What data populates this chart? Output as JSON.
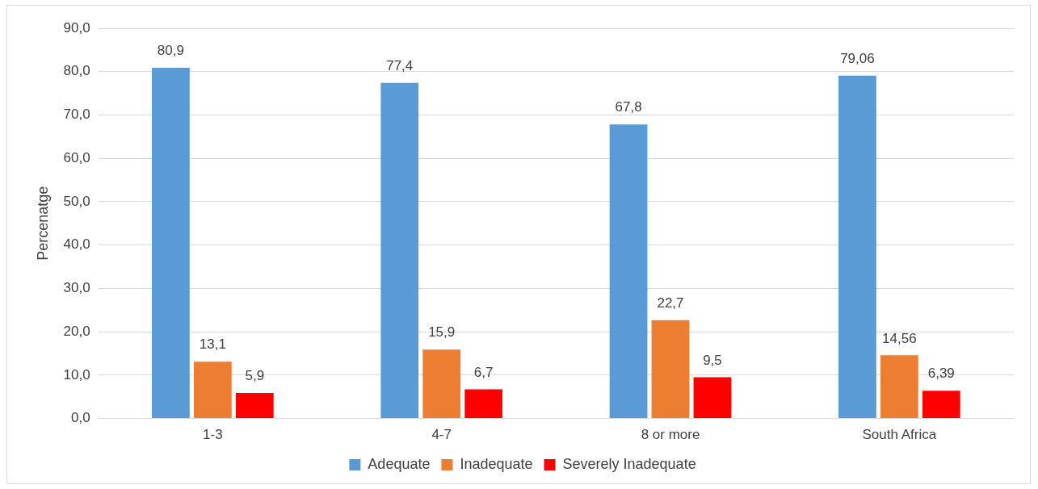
{
  "chart_data": {
    "type": "bar",
    "ylabel": "Percenatge",
    "categories": [
      "1-3",
      "4-7",
      "8 or more",
      "South Africa"
    ],
    "series": [
      {
        "name": "Adequate",
        "color": "#5b9bd5",
        "values": [
          80.9,
          77.4,
          67.8,
          79.06
        ],
        "value_labels": [
          "80,9",
          "77,4",
          "67,8",
          "79,06"
        ]
      },
      {
        "name": "Inadequate",
        "color": "#ed7d31",
        "values": [
          13.1,
          15.9,
          22.7,
          14.56
        ],
        "value_labels": [
          "13,1",
          "15,9",
          "22,7",
          "14,56"
        ]
      },
      {
        "name": "Severely Inadequate",
        "color": "#ff0000",
        "values": [
          5.9,
          6.7,
          9.5,
          6.39
        ],
        "value_labels": [
          "5,9",
          "6,7",
          "9,5",
          "6,39"
        ]
      }
    ],
    "ylim": [
      0,
      90
    ],
    "yticks": [
      {
        "value": 0,
        "label": "0,0"
      },
      {
        "value": 10,
        "label": "10,0"
      },
      {
        "value": 20,
        "label": "20,0"
      },
      {
        "value": 30,
        "label": "30,0"
      },
      {
        "value": 40,
        "label": "40,0"
      },
      {
        "value": 50,
        "label": "50,0"
      },
      {
        "value": 60,
        "label": "60,0"
      },
      {
        "value": 70,
        "label": "70,0"
      },
      {
        "value": 80,
        "label": "80,0"
      },
      {
        "value": 90,
        "label": "90,0"
      }
    ],
    "grid": "y",
    "legend": "bottom"
  }
}
